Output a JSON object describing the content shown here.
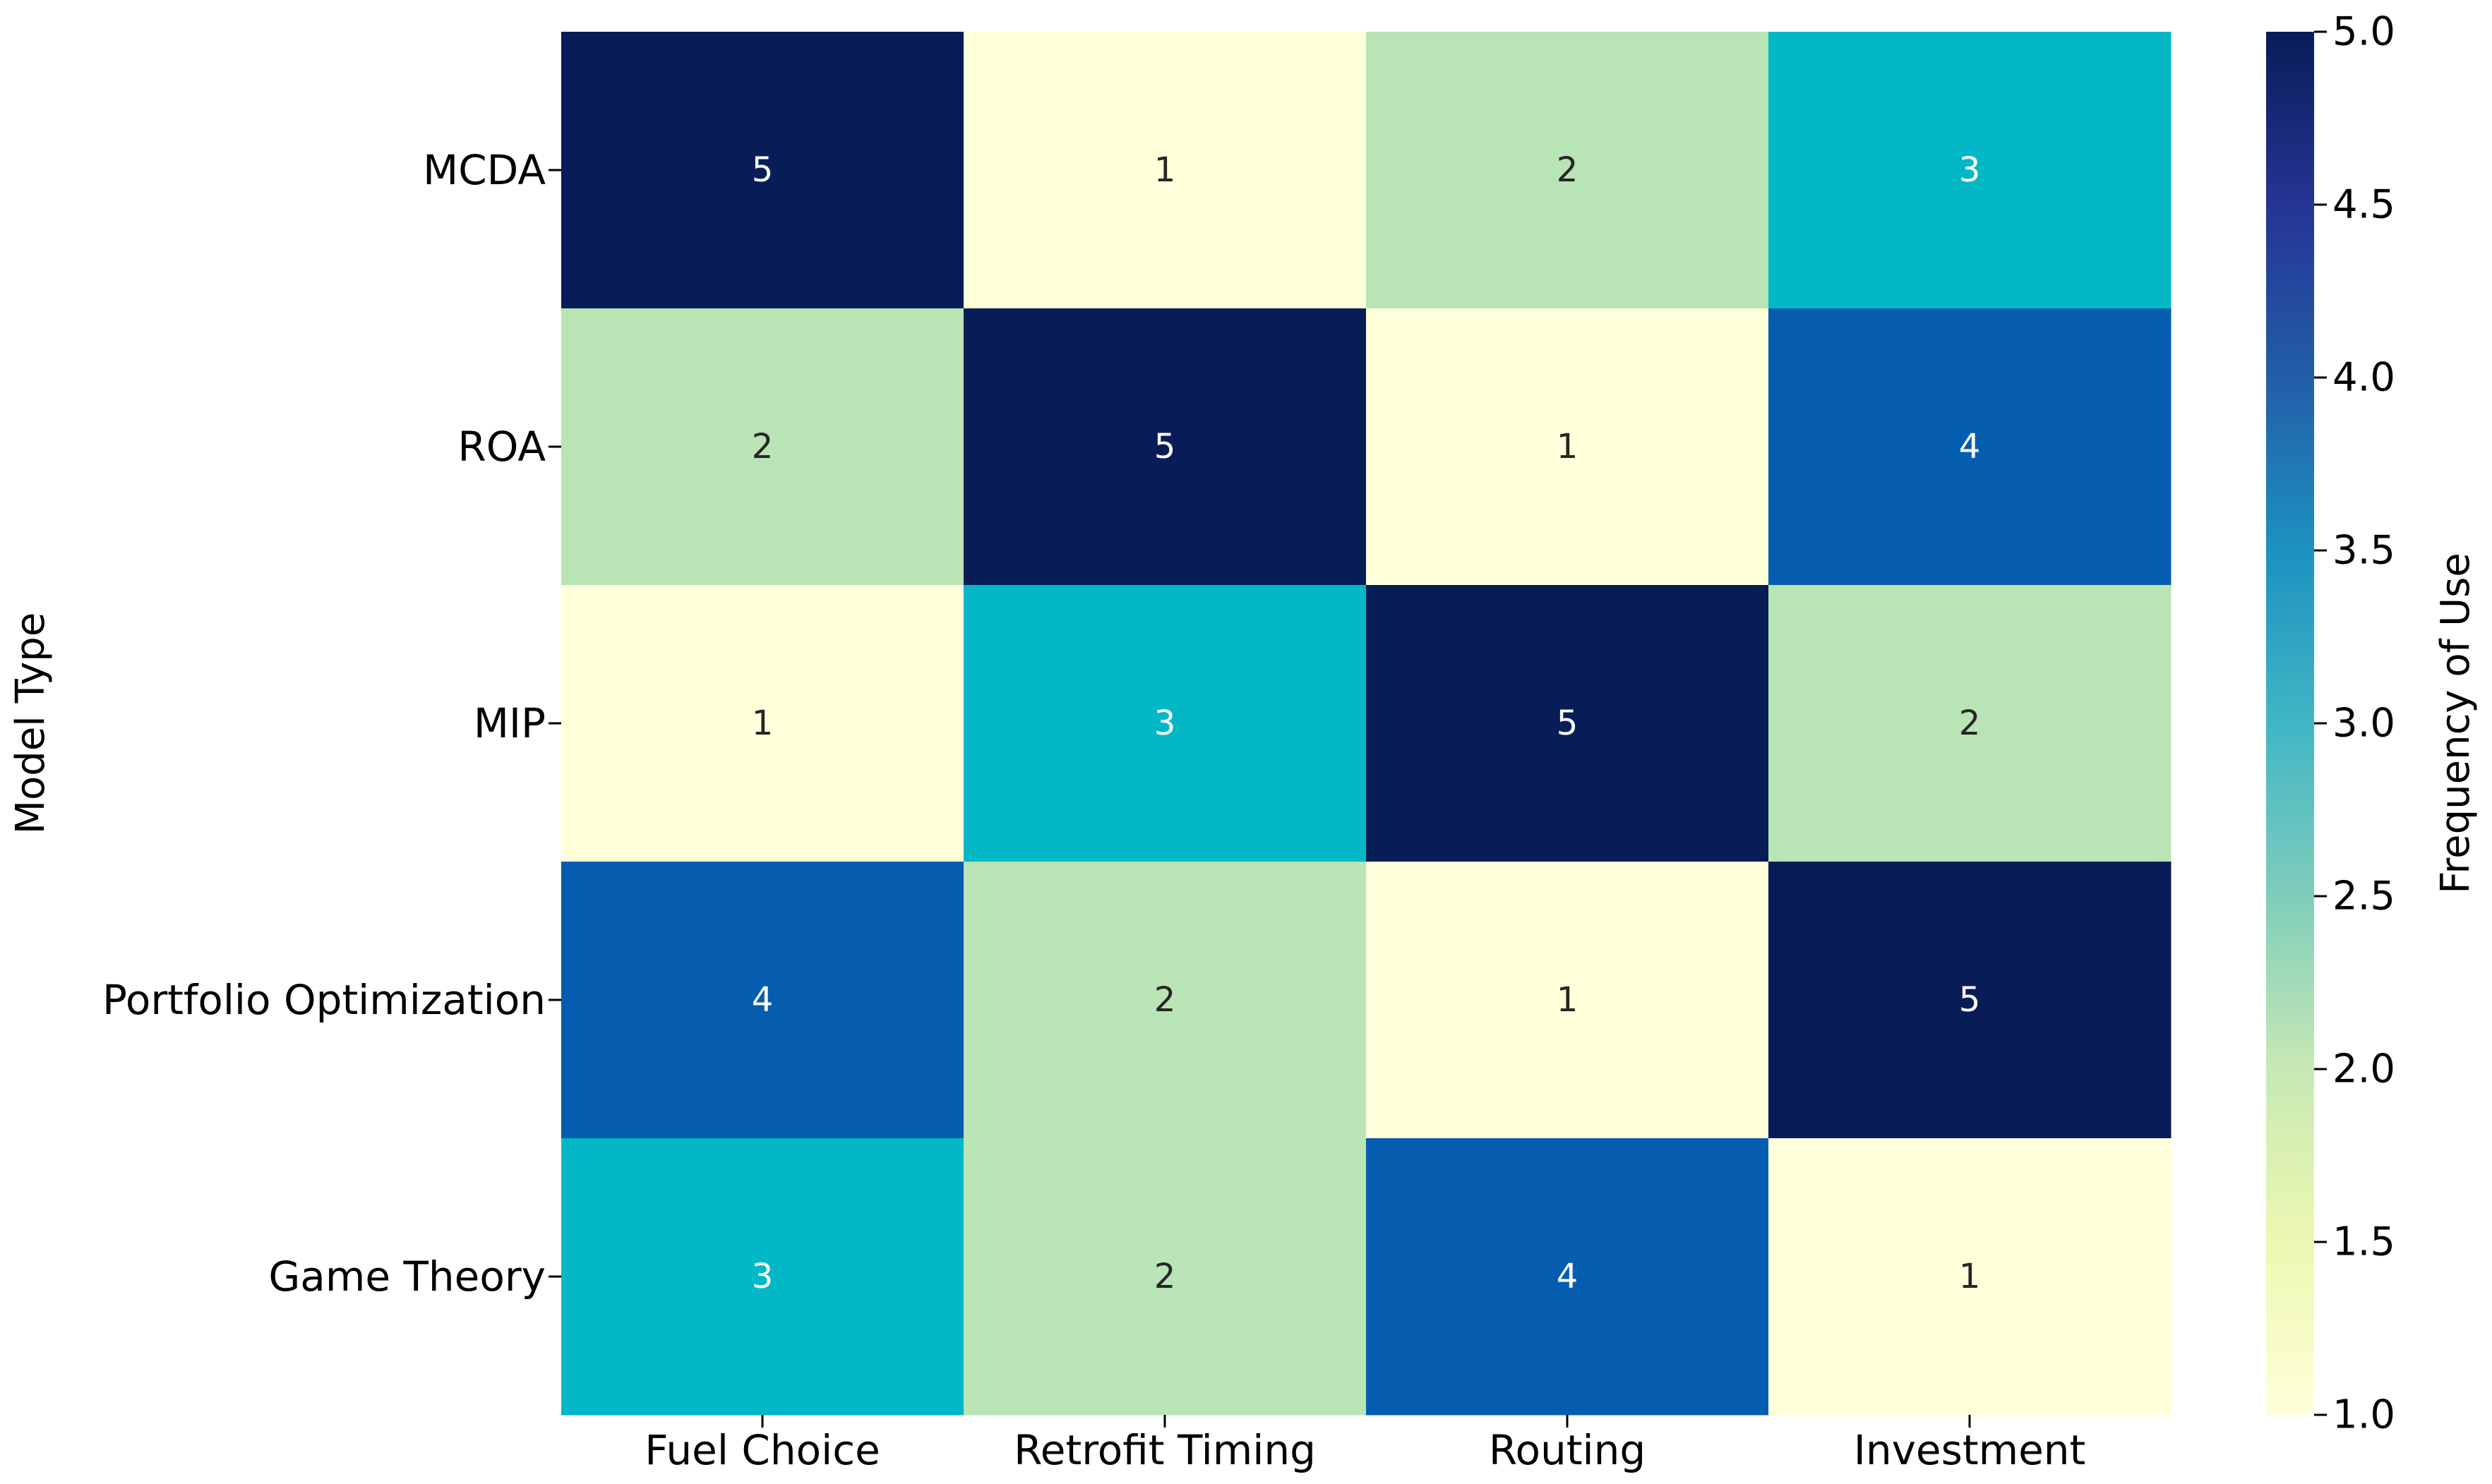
{
  "chart_data": {
    "type": "heatmap",
    "title": "",
    "xlabel": "",
    "ylabel": "Model Type",
    "categories_x": [
      "Fuel Choice",
      "Retrofit Timing",
      "Routing",
      "Investment"
    ],
    "categories_y": [
      "MCDA",
      "ROA",
      "MIP",
      "Portfolio Optimization",
      "Game Theory"
    ],
    "values": [
      [
        5,
        1,
        2,
        3
      ],
      [
        2,
        5,
        1,
        4
      ],
      [
        1,
        3,
        5,
        2
      ],
      [
        4,
        2,
        1,
        5
      ],
      [
        3,
        2,
        4,
        1
      ]
    ],
    "colorbar": {
      "label": "Frequency of Use",
      "min": 1.0,
      "max": 5.0,
      "ticks": [
        "1.0",
        "1.5",
        "2.0",
        "2.5",
        "3.0",
        "3.5",
        "4.0",
        "4.5",
        "5.0"
      ]
    },
    "colormap": "YlGnBu",
    "colors": {
      "1": "#ffffd9",
      "2": "#b9e4b5",
      "3": "#02b7c6",
      "4": "#045dae",
      "5": "#081d58"
    },
    "annotation_colors": {
      "dark_text": "#262626",
      "light_text": "#ffffff"
    }
  }
}
